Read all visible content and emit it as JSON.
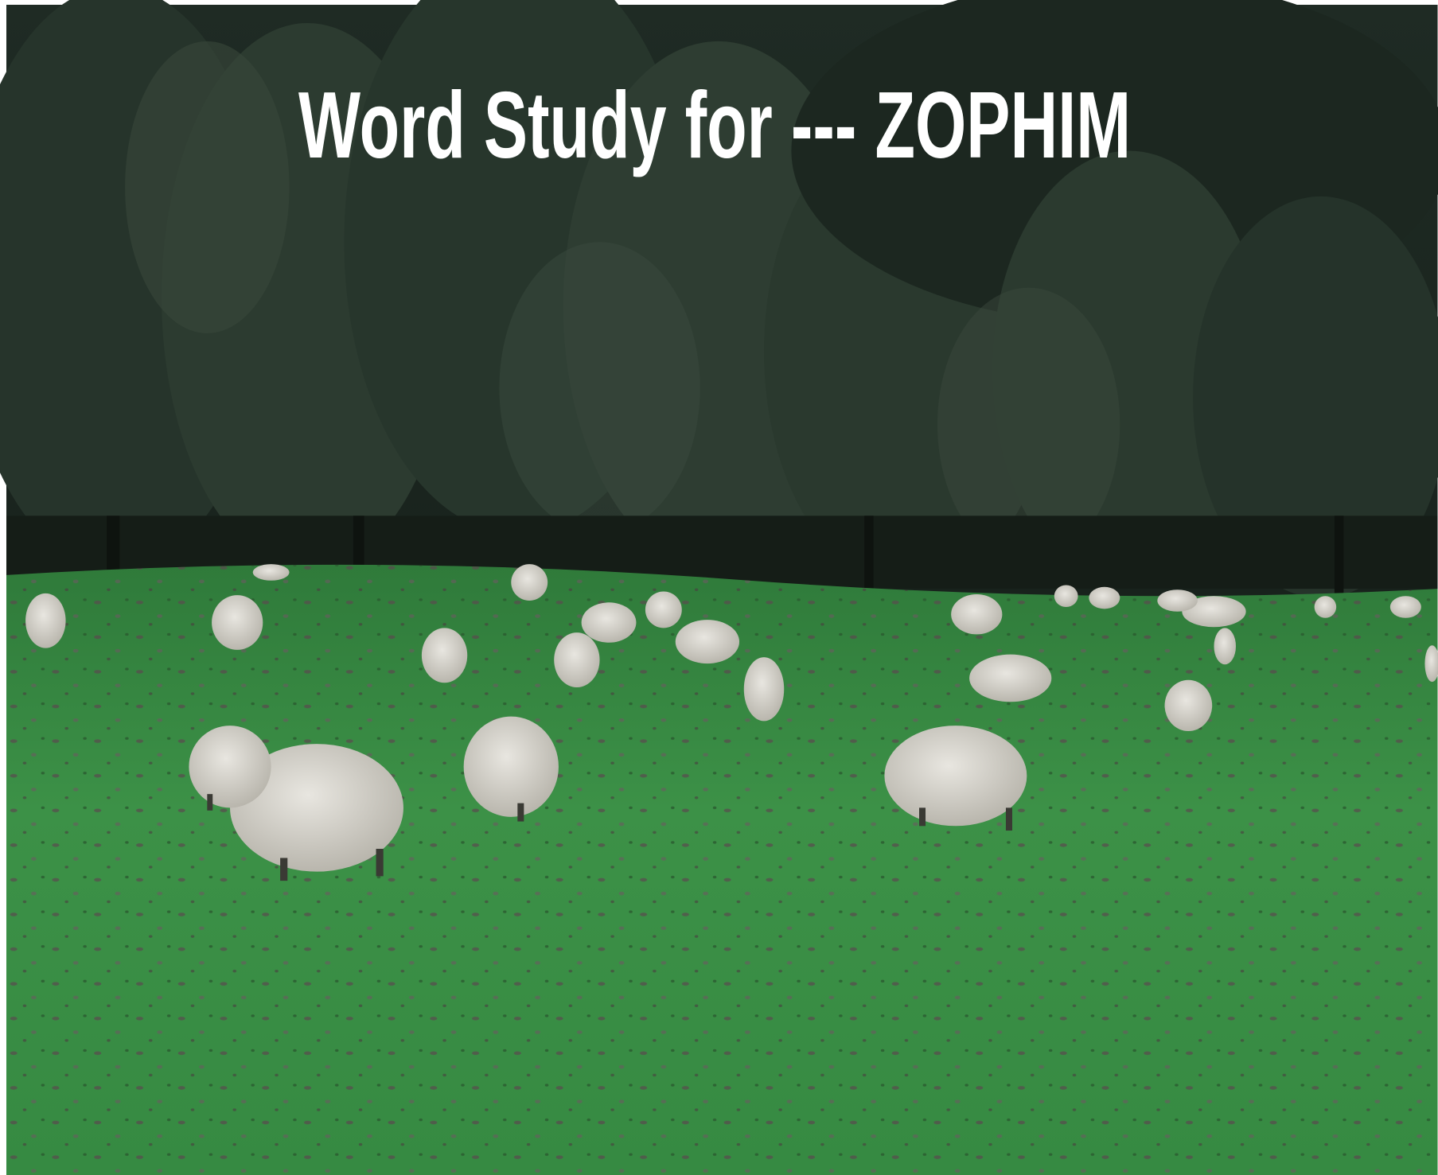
{
  "title": "Word Study for --- ZOPHIM"
}
